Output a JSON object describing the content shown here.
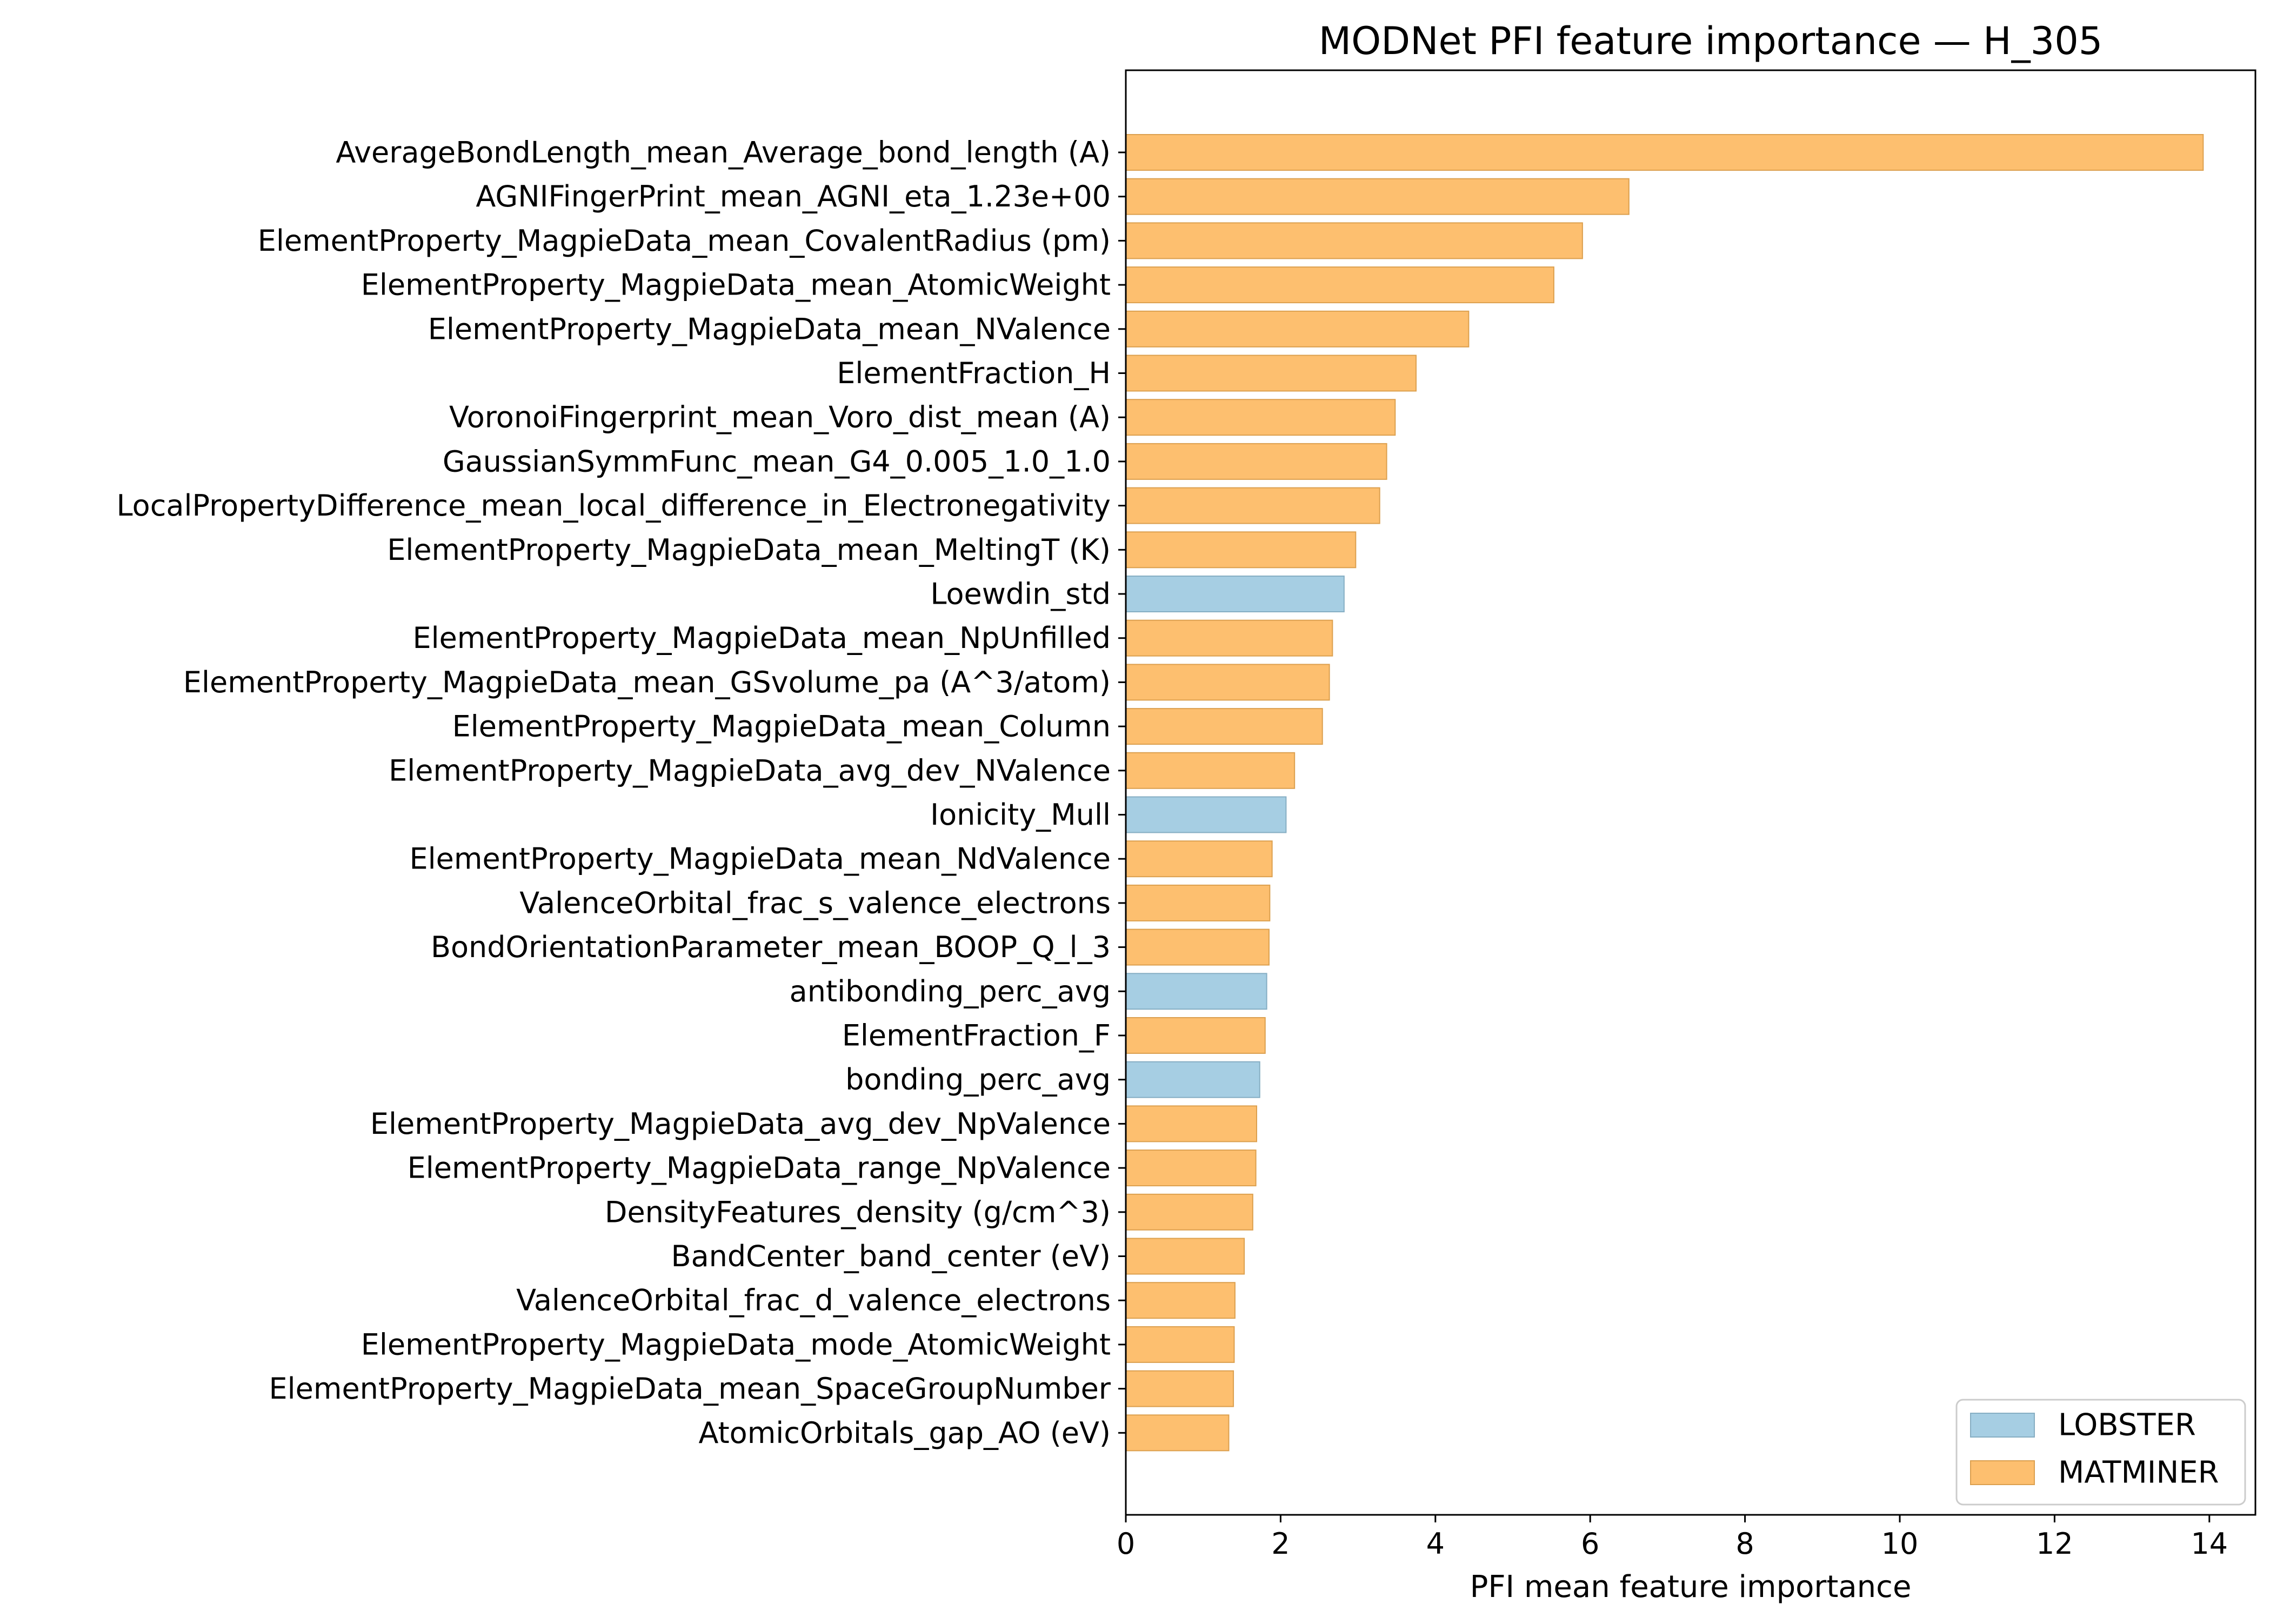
{
  "chart_data": {
    "type": "bar",
    "orientation": "horizontal",
    "title": "MODNet PFI feature importance — H_305",
    "xlabel": "PFI mean feature importance",
    "ylabel": "",
    "xlim": [
      0,
      14.6
    ],
    "xticks": [
      0,
      2,
      4,
      6,
      8,
      10,
      12,
      14
    ],
    "grid": false,
    "legend_position": "lower-right",
    "legend": [
      {
        "name": "LOBSTER",
        "color": "#a6cee3"
      },
      {
        "name": "MATMINER",
        "color": "#fdbf6f"
      }
    ],
    "categories": [
      "AverageBondLength_mean_Average_bond_length (A)",
      "AGNIFingerPrint_mean_AGNI_eta_1.23e+00",
      "ElementProperty_MagpieData_mean_CovalentRadius (pm)",
      "ElementProperty_MagpieData_mean_AtomicWeight",
      "ElementProperty_MagpieData_mean_NValence",
      "ElementFraction_H",
      "VoronoiFingerprint_mean_Voro_dist_mean (A)",
      "GaussianSymmFunc_mean_G4_0.005_1.0_1.0",
      "LocalPropertyDifference_mean_local_difference_in_Electronegativity",
      "ElementProperty_MagpieData_mean_MeltingT (K)",
      "Loewdin_std",
      "ElementProperty_MagpieData_mean_NpUnfilled",
      "ElementProperty_MagpieData_mean_GSvolume_pa (A^3/atom)",
      "ElementProperty_MagpieData_mean_Column",
      "ElementProperty_MagpieData_avg_dev_NValence",
      "Ionicity_Mull",
      "ElementProperty_MagpieData_mean_NdValence",
      "ValenceOrbital_frac_s_valence_electrons",
      "BondOrientationParameter_mean_BOOP_Q_l_3",
      "antibonding_perc_avg",
      "ElementFraction_F",
      "bonding_perc_avg",
      "ElementProperty_MagpieData_avg_dev_NpValence",
      "ElementProperty_MagpieData_range_NpValence",
      "DensityFeatures_density (g/cm^3)",
      "BandCenter_band_center (eV)",
      "ValenceOrbital_frac_d_valence_electrons",
      "ElementProperty_MagpieData_mode_AtomicWeight",
      "ElementProperty_MagpieData_mean_SpaceGroupNumber",
      "AtomicOrbitals_gap_AO (eV)"
    ],
    "values": [
      13.92,
      6.5,
      5.9,
      5.53,
      4.43,
      3.75,
      3.48,
      3.37,
      3.28,
      2.97,
      2.82,
      2.67,
      2.63,
      2.54,
      2.18,
      2.07,
      1.89,
      1.86,
      1.85,
      1.82,
      1.8,
      1.73,
      1.69,
      1.68,
      1.64,
      1.53,
      1.41,
      1.4,
      1.39,
      1.33
    ],
    "sources": [
      "MATMINER",
      "MATMINER",
      "MATMINER",
      "MATMINER",
      "MATMINER",
      "MATMINER",
      "MATMINER",
      "MATMINER",
      "MATMINER",
      "MATMINER",
      "LOBSTER",
      "MATMINER",
      "MATMINER",
      "MATMINER",
      "MATMINER",
      "LOBSTER",
      "MATMINER",
      "MATMINER",
      "MATMINER",
      "LOBSTER",
      "MATMINER",
      "LOBSTER",
      "MATMINER",
      "MATMINER",
      "MATMINER",
      "MATMINER",
      "MATMINER",
      "MATMINER",
      "MATMINER",
      "MATMINER"
    ]
  }
}
